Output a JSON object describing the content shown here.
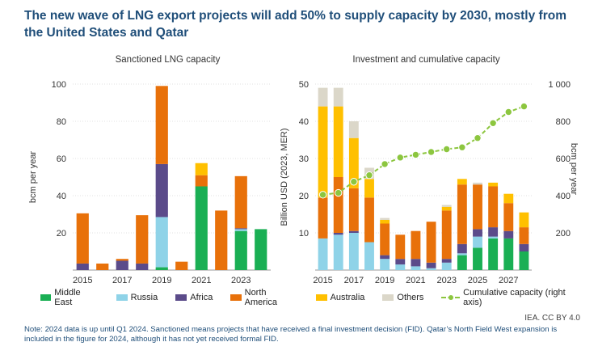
{
  "title": "The new wave of LNG export projects will add 50% to supply capacity by 2030, mostly from the United States and Qatar",
  "credit": "IEA. CC BY 4.0",
  "note": "Note: 2024 data is up until Q1 2024. Sanctioned means projects that have received a final investment decision (FID). Qatar’s North Field West expansion is included in the figure for 2024, although it has not yet received formal FID.",
  "colors": {
    "Middle East": "#1aaf54",
    "Russia": "#8fd3e8",
    "Africa": "#5b4b8a",
    "North America": "#e8710a",
    "Australia": "#ffc000",
    "Others": "#dbd7c9",
    "Cumulative": "#8cc63f"
  },
  "legend": [
    "Middle East",
    "Russia",
    "Africa",
    "North America",
    "Australia",
    "Others",
    "Cumulative capacity (right axis)"
  ],
  "chart_data": [
    {
      "type": "bar",
      "stacked": true,
      "title": "Sanctioned LNG capacity",
      "ylabel": "bcm per year",
      "ylim": [
        0,
        100
      ],
      "yticks": [
        20,
        40,
        60,
        80,
        100
      ],
      "categories": [
        "2015",
        "2016",
        "2017",
        "2018",
        "2019",
        "2020",
        "2021",
        "2022",
        "2023",
        "2024"
      ],
      "xtick_labels": [
        "2015",
        "2017",
        "2019",
        "2021",
        "2023"
      ],
      "series": [
        {
          "name": "Middle East",
          "values": [
            0,
            0,
            0,
            0,
            1.5,
            0,
            45,
            0,
            21,
            22
          ]
        },
        {
          "name": "Russia",
          "values": [
            0,
            0,
            0,
            0,
            27,
            0,
            0,
            0,
            1,
            0
          ]
        },
        {
          "name": "Africa",
          "values": [
            3.5,
            0,
            5,
            3.5,
            28.5,
            0,
            0,
            0,
            0.5,
            0
          ]
        },
        {
          "name": "North America",
          "values": [
            27,
            3.5,
            1,
            26,
            42,
            4.5,
            6,
            32,
            28,
            0
          ]
        },
        {
          "name": "Australia",
          "values": [
            0,
            0,
            0,
            0,
            0,
            0,
            6.5,
            0,
            0,
            0
          ]
        }
      ]
    },
    {
      "type": "bar",
      "stacked": true,
      "title": "Investment and cumulative capacity",
      "ylabel": "Billion USD (2023, MER)",
      "y2label": "bcm per year",
      "ylim": [
        0,
        50
      ],
      "yticks": [
        10,
        20,
        30,
        40,
        50
      ],
      "y2lim": [
        0,
        1000
      ],
      "y2ticks": [
        200,
        400,
        600,
        800,
        1000
      ],
      "y2tick_labels": [
        "200",
        "400",
        "600",
        "800",
        "1 000"
      ],
      "categories": [
        "2015",
        "2016",
        "2017",
        "2018",
        "2019",
        "2020",
        "2021",
        "2022",
        "2023",
        "2024",
        "2025",
        "2026",
        "2027",
        "2028"
      ],
      "xtick_labels": [
        "2015",
        "2017",
        "2019",
        "2021",
        "2023",
        "2025",
        "2027"
      ],
      "series": [
        {
          "name": "Middle East",
          "values": [
            0,
            0,
            0,
            0,
            0,
            0,
            0,
            0,
            0,
            4,
            6,
            8.5,
            8.5,
            5
          ]
        },
        {
          "name": "Russia",
          "values": [
            8.5,
            9.5,
            10,
            7.5,
            3,
            1.5,
            1,
            0.5,
            2,
            0.5,
            3,
            0.5,
            0,
            0
          ]
        },
        {
          "name": "Africa",
          "values": [
            0,
            0.5,
            0.5,
            0,
            1,
            1.5,
            2,
            1.5,
            1,
            2.5,
            2,
            2.5,
            2,
            2
          ]
        },
        {
          "name": "North America",
          "values": [
            11,
            15,
            11.5,
            12,
            8.5,
            6.5,
            7.5,
            11,
            13,
            16,
            12,
            11,
            7.5,
            4.5
          ]
        },
        {
          "name": "Australia",
          "values": [
            24.5,
            19,
            13.5,
            5,
            1,
            0,
            0,
            0,
            1,
            1.5,
            0,
            1,
            2.5,
            4
          ]
        },
        {
          "name": "Others",
          "values": [
            5,
            5,
            4.5,
            3,
            0.5,
            0,
            0,
            0,
            0.5,
            0,
            0.5,
            0,
            0,
            0
          ]
        }
      ],
      "line": {
        "name": "Cumulative capacity (right axis)",
        "values": [
          405,
          415,
          475,
          510,
          570,
          605,
          620,
          635,
          650,
          660,
          710,
          790,
          850,
          880
        ]
      }
    }
  ]
}
